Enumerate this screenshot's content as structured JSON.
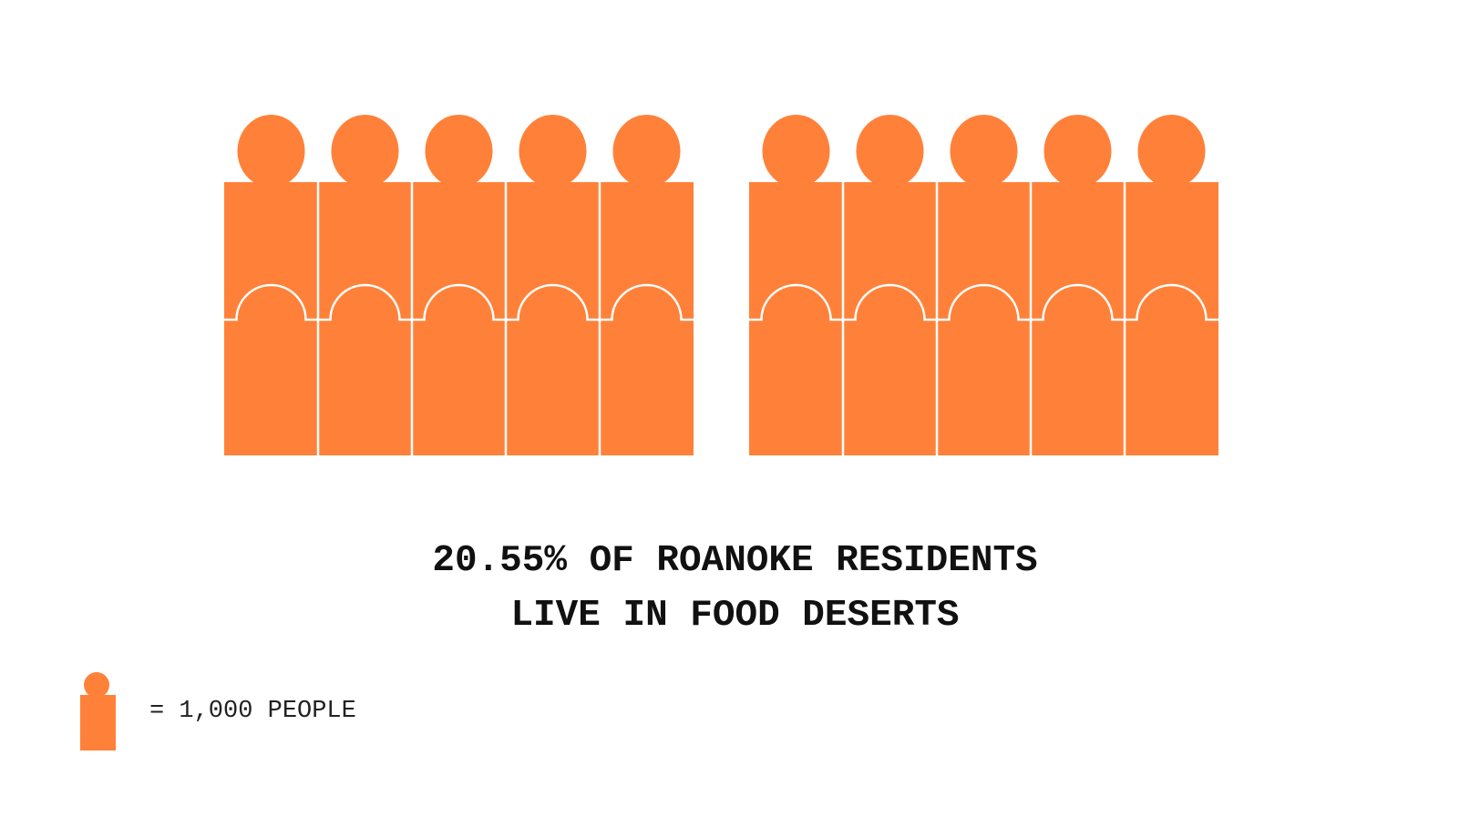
{
  "colors": {
    "accent": "#FF8139",
    "divider": "#ffffff"
  },
  "headline": {
    "line1": "20.55% OF ROANOKE RESIDENTS",
    "line2": "LIVE IN FOOD DESERTS"
  },
  "legend": {
    "icon": "person-icon",
    "text": "= 1,000 PEOPLE"
  },
  "chart_data": {
    "type": "pictogram",
    "unit": "1,000 PEOPLE",
    "percent": 20.55,
    "groups": [
      {
        "rows": 2,
        "per_row": 5
      },
      {
        "rows": 2,
        "per_row": 5
      }
    ],
    "total_icons": 20
  }
}
